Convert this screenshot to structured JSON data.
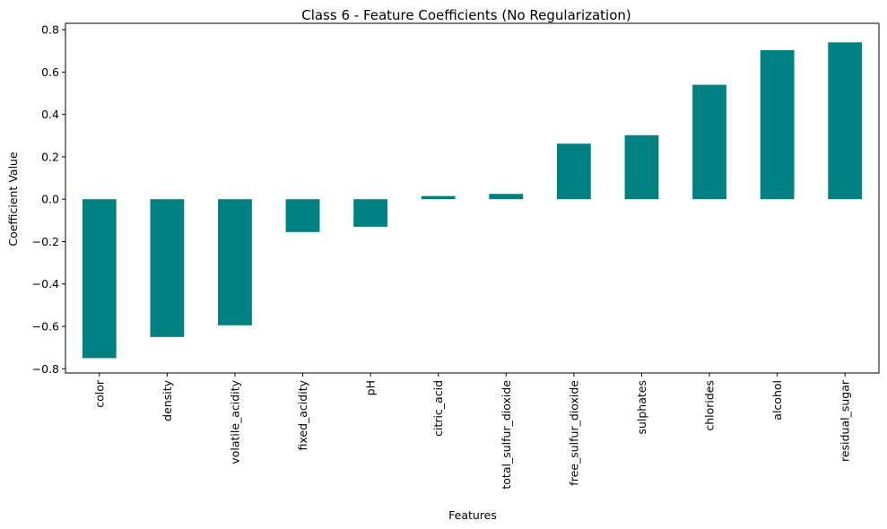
{
  "chart_data": {
    "type": "bar",
    "title": "Class 6 - Feature Coefficients (No Regularization)",
    "xlabel": "Features",
    "ylabel": "Coefficient Value",
    "categories": [
      "color",
      "density",
      "volatile_acidity",
      "fixed_acidity",
      "pH",
      "citric_acid",
      "total_sulfur_dioxide",
      "free_sulfur_dioxide",
      "sulphates",
      "chlorides",
      "alcohol",
      "residual_sugar"
    ],
    "values": [
      -0.75,
      -0.65,
      -0.595,
      -0.155,
      -0.13,
      0.015,
      0.025,
      0.262,
      0.302,
      0.54,
      0.703,
      0.74
    ],
    "ylim": [
      -0.82,
      0.83
    ],
    "yticks": [
      -0.8,
      -0.6,
      -0.4,
      -0.2,
      0.0,
      0.2,
      0.4,
      0.6,
      0.8
    ],
    "ytick_labels": [
      "−0.8",
      "−0.6",
      "−0.4",
      "−0.2",
      "0.0",
      "0.2",
      "0.4",
      "0.6",
      "0.8"
    ],
    "bar_color": "#008080",
    "grid": false,
    "legend": "none"
  }
}
